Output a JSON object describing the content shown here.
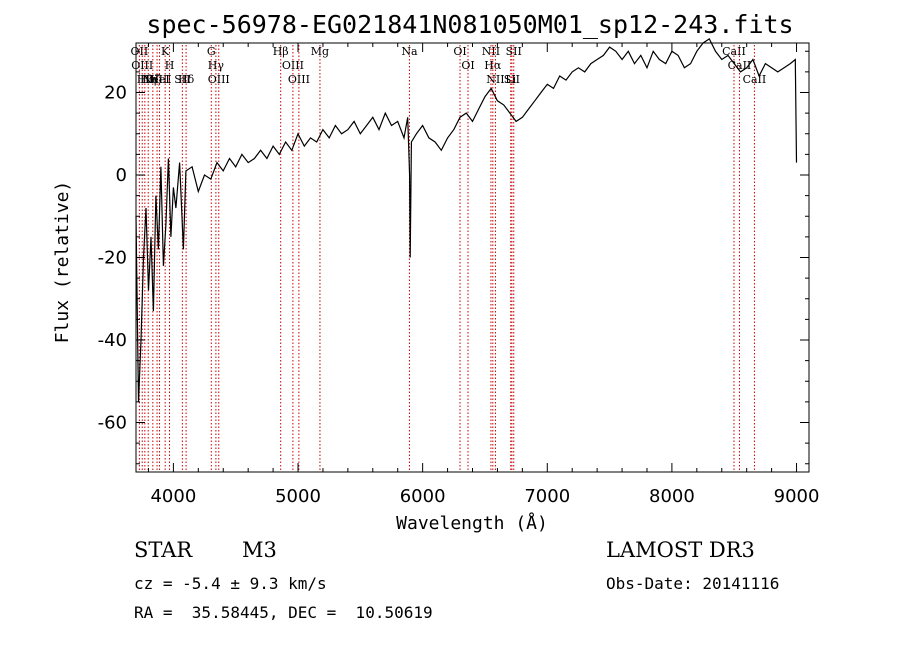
{
  "chart_data": {
    "type": "line",
    "title": "spec-56978-EG021841N081050M01_sp12-243.fits",
    "xlabel": "Wavelength (Å)",
    "ylabel": "Flux (relative)",
    "xlim": [
      3700,
      9100
    ],
    "ylim": [
      -72,
      32
    ],
    "x_ticks": [
      4000,
      5000,
      6000,
      7000,
      8000,
      9000
    ],
    "y_ticks": [
      -60,
      -40,
      -20,
      0,
      20
    ],
    "grid": false,
    "line_color": "#000000",
    "marker_color": "#cc0000",
    "series": [
      {
        "x": [
          3700,
          3720,
          3740,
          3760,
          3780,
          3800,
          3820,
          3840,
          3860,
          3880,
          3900,
          3920,
          3940,
          3960,
          3980,
          4000,
          4020,
          4050,
          4080,
          4100,
          4150,
          4200,
          4250,
          4300,
          4350,
          4400,
          4450,
          4500,
          4550,
          4600,
          4650,
          4700,
          4750,
          4800,
          4850,
          4900,
          4950,
          5000,
          5050,
          5100,
          5150,
          5200,
          5250,
          5300,
          5350,
          5400,
          5450,
          5500,
          5550,
          5600,
          5650,
          5700,
          5750,
          5800,
          5850,
          5880,
          5895,
          5900,
          5910,
          5950,
          6000,
          6050,
          6100,
          6150,
          6200,
          6250,
          6300,
          6350,
          6400,
          6450,
          6500,
          6550,
          6600,
          6650,
          6700,
          6750,
          6800,
          6850,
          6900,
          6950,
          7000,
          7050,
          7100,
          7150,
          7200,
          7250,
          7300,
          7350,
          7400,
          7450,
          7500,
          7550,
          7600,
          7650,
          7700,
          7750,
          7800,
          7850,
          7900,
          7950,
          8000,
          8050,
          8100,
          8150,
          8200,
          8250,
          8300,
          8350,
          8400,
          8450,
          8500,
          8550,
          8600,
          8650,
          8700,
          8750,
          8800,
          8850,
          8900,
          8950,
          8990,
          9000
        ],
        "y": [
          -10,
          -55,
          -40,
          -20,
          -8,
          -28,
          -15,
          -33,
          -5,
          -18,
          2,
          -22,
          -12,
          4,
          -15,
          -3,
          -8,
          3,
          -18,
          1,
          2,
          -4,
          0,
          -1,
          3,
          1,
          4,
          2,
          5,
          3,
          4,
          6,
          4,
          7,
          5,
          8,
          6,
          10,
          7,
          9,
          8,
          11,
          9,
          12,
          10,
          11,
          13,
          10,
          12,
          14,
          11,
          15,
          12,
          13,
          9,
          14,
          0,
          -20,
          8,
          10,
          12,
          9,
          8,
          6,
          9,
          11,
          14,
          15,
          13,
          16,
          19,
          21,
          18,
          17,
          15,
          13,
          14,
          16,
          18,
          20,
          22,
          21,
          24,
          23,
          25,
          26,
          25,
          27,
          28,
          29,
          31,
          30,
          28,
          30,
          27,
          29,
          26,
          30,
          28,
          27,
          30,
          29,
          26,
          27,
          30,
          32,
          33,
          30,
          28,
          29,
          27,
          25,
          26,
          28,
          24,
          27,
          26,
          25,
          26,
          27,
          28,
          3
        ]
      }
    ],
    "line_markers": [
      {
        "w": 3727,
        "label": "OII"
      },
      {
        "w": 3750,
        "label": "OIII"
      },
      {
        "w": 3771,
        "label": "Hθ"
      },
      {
        "w": 3798,
        "label": "Hη"
      },
      {
        "w": 3835,
        "label": "Hζ"
      },
      {
        "w": 3869,
        "label": "NeIII"
      },
      {
        "w": 3889,
        "label": "HeI"
      },
      {
        "w": 3934,
        "label": "K"
      },
      {
        "w": 3969,
        "label": "H"
      },
      {
        "w": 4072,
        "label": "SII"
      },
      {
        "w": 4102,
        "label": "Hδ"
      },
      {
        "w": 4304,
        "label": "G"
      },
      {
        "w": 4341,
        "label": "Hγ"
      },
      {
        "w": 4364,
        "label": "OIII"
      },
      {
        "w": 4861,
        "label": "Hβ"
      },
      {
        "w": 4959,
        "label": "OIII"
      },
      {
        "w": 5007,
        "label": "OIII"
      },
      {
        "w": 5176,
        "label": "Mg"
      },
      {
        "w": 5894,
        "label": "Na"
      },
      {
        "w": 6300,
        "label": "OI"
      },
      {
        "w": 6364,
        "label": "OI"
      },
      {
        "w": 6548,
        "label": "NII"
      },
      {
        "w": 6563,
        "label": "Hα"
      },
      {
        "w": 6584,
        "label": "NII"
      },
      {
        "w": 6707,
        "label": "Li"
      },
      {
        "w": 6716,
        "label": "SII"
      },
      {
        "w": 6731,
        "label": "SII"
      },
      {
        "w": 8498,
        "label": "CaII"
      },
      {
        "w": 8542,
        "label": "CaII"
      },
      {
        "w": 8662,
        "label": "CaII"
      }
    ]
  },
  "info": {
    "class": "STAR",
    "subclass": "M3",
    "survey": "LAMOST DR3",
    "cz_line": "cz = -5.4 ± 9.3 km/s",
    "obs_date_line": "Obs-Date: 20141116",
    "coords_line": "RA =  35.58445, DEC =  10.50619"
  }
}
